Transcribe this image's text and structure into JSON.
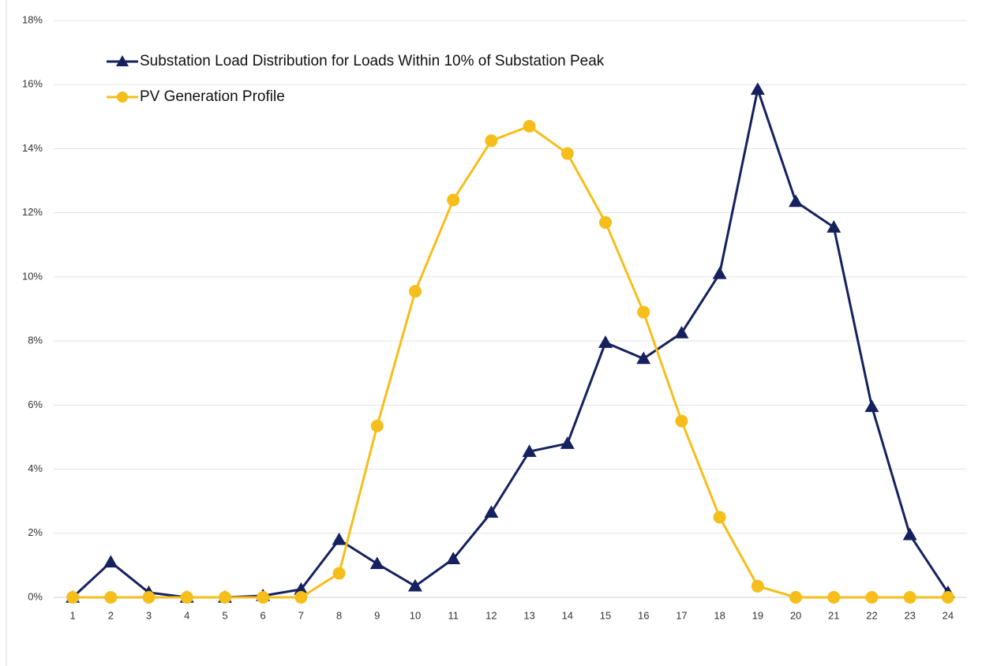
{
  "chart_data": {
    "type": "line",
    "categories": [
      1,
      2,
      3,
      4,
      5,
      6,
      7,
      8,
      9,
      10,
      11,
      12,
      13,
      14,
      15,
      16,
      17,
      18,
      19,
      20,
      21,
      22,
      23,
      24
    ],
    "series": [
      {
        "name": "Substation Load Distribution for Loads Within 10% of Substation Peak",
        "color": "#15215e",
        "marker": "triangle",
        "values": [
          0,
          1.1,
          0.15,
          0,
          0,
          0.05,
          0.25,
          1.8,
          1.05,
          0.35,
          1.2,
          2.65,
          4.55,
          4.8,
          7.95,
          7.45,
          8.25,
          10.1,
          15.85,
          12.35,
          11.55,
          5.95,
          1.95,
          0.15
        ]
      },
      {
        "name": "PV Generation Profile",
        "color": "#f6be1a",
        "marker": "circle",
        "values": [
          0,
          0,
          0,
          0,
          0,
          0,
          0,
          0.75,
          5.35,
          9.55,
          12.4,
          14.25,
          14.7,
          13.85,
          11.7,
          8.9,
          5.5,
          2.5,
          0.35,
          0,
          0,
          0,
          0,
          0
        ]
      }
    ],
    "ylim": [
      0,
      18
    ],
    "yticks": [
      {
        "value": 0,
        "label": "0%"
      },
      {
        "value": 2,
        "label": "2%"
      },
      {
        "value": 4,
        "label": "4%"
      },
      {
        "value": 6,
        "label": "6%"
      },
      {
        "value": 8,
        "label": "8%"
      },
      {
        "value": 10,
        "label": "10%"
      },
      {
        "value": 12,
        "label": "12%"
      },
      {
        "value": 14,
        "label": "14%"
      },
      {
        "value": 16,
        "label": "16%"
      },
      {
        "value": 18,
        "label": "18%"
      }
    ],
    "grid": true,
    "legend": "upper left"
  }
}
